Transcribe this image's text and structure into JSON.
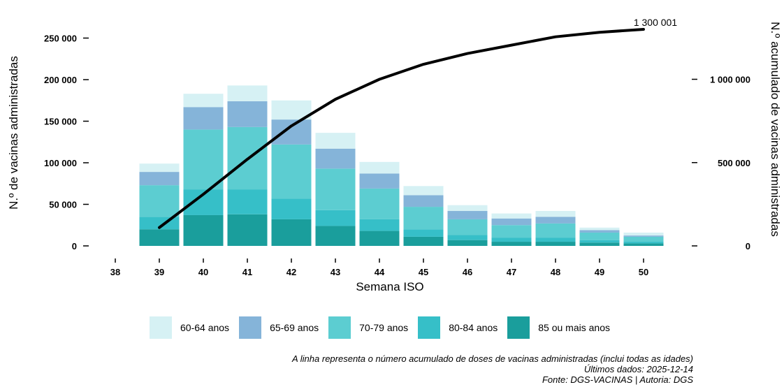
{
  "chart_data": {
    "type": "bar",
    "stacked": true,
    "xlabel": "Semana ISO",
    "ylabel": "N.º de vacinas administradas",
    "y2label": "N.º acumulado de vacinas administradas",
    "categories": [
      "38",
      "39",
      "40",
      "41",
      "42",
      "43",
      "44",
      "45",
      "46",
      "47",
      "48",
      "49",
      "50"
    ],
    "ylim": [
      0,
      270000
    ],
    "y_ticks": [
      0,
      50000,
      100000,
      150000,
      200000,
      250000
    ],
    "y_tick_labels": [
      "0",
      "50 000",
      "100 000",
      "150 000",
      "200 000",
      "250 000"
    ],
    "y2lim": [
      0,
      1350000
    ],
    "y2_ticks": [
      0,
      500000,
      1000000
    ],
    "y2_tick_labels": [
      "0",
      "500 000",
      "1 000 000"
    ],
    "series": [
      {
        "name": "85 ou mais anos",
        "color": "#1a9e9c",
        "values": [
          0,
          20000,
          37000,
          38000,
          32000,
          24000,
          18000,
          11000,
          7000,
          5000,
          5000,
          4000,
          3000
        ]
      },
      {
        "name": "80-84 anos",
        "color": "#36bfc8",
        "values": [
          0,
          15000,
          31000,
          30000,
          25000,
          19000,
          14000,
          9000,
          6000,
          5000,
          5000,
          3000,
          2000
        ]
      },
      {
        "name": "70-79 anos",
        "color": "#5ccdd1",
        "values": [
          0,
          38000,
          72000,
          75000,
          65000,
          50000,
          37000,
          27000,
          19000,
          15000,
          17000,
          9000,
          6000
        ]
      },
      {
        "name": "65-69 anos",
        "color": "#85b4d9",
        "values": [
          0,
          16000,
          27000,
          31000,
          30000,
          24000,
          18000,
          14000,
          10000,
          8000,
          8000,
          3000,
          1500
        ]
      },
      {
        "name": "60-64 anos",
        "color": "#d6f1f4",
        "values": [
          0,
          10000,
          16000,
          19000,
          23000,
          19000,
          14000,
          11000,
          7000,
          6000,
          7000,
          3000,
          3500
        ]
      }
    ],
    "cumulative": {
      "x": [
        "39",
        "40",
        "41",
        "42",
        "43",
        "44",
        "45",
        "46",
        "47",
        "48",
        "49",
        "50"
      ],
      "values": [
        110000,
        310000,
        520000,
        720000,
        880000,
        1000000,
        1090000,
        1155000,
        1205000,
        1255000,
        1282000,
        1300001
      ],
      "color": "#000000",
      "end_label": "1 300 001"
    }
  },
  "legend": [
    {
      "label": "60-64 anos",
      "color": "#d6f1f4"
    },
    {
      "label": "65-69 anos",
      "color": "#85b4d9"
    },
    {
      "label": "70-79 anos",
      "color": "#5ccdd1"
    },
    {
      "label": "80-84 anos",
      "color": "#36bfc8"
    },
    {
      "label": "85 ou mais anos",
      "color": "#1a9e9c"
    }
  ],
  "notes": {
    "line1": "A linha representa o número acumulado de doses de vacinas administradas (inclui todas as idades)",
    "line2": "Últimos dados: 2025-12-14",
    "line3": "Fonte: DGS-VACINAS | Autoria: DGS"
  }
}
